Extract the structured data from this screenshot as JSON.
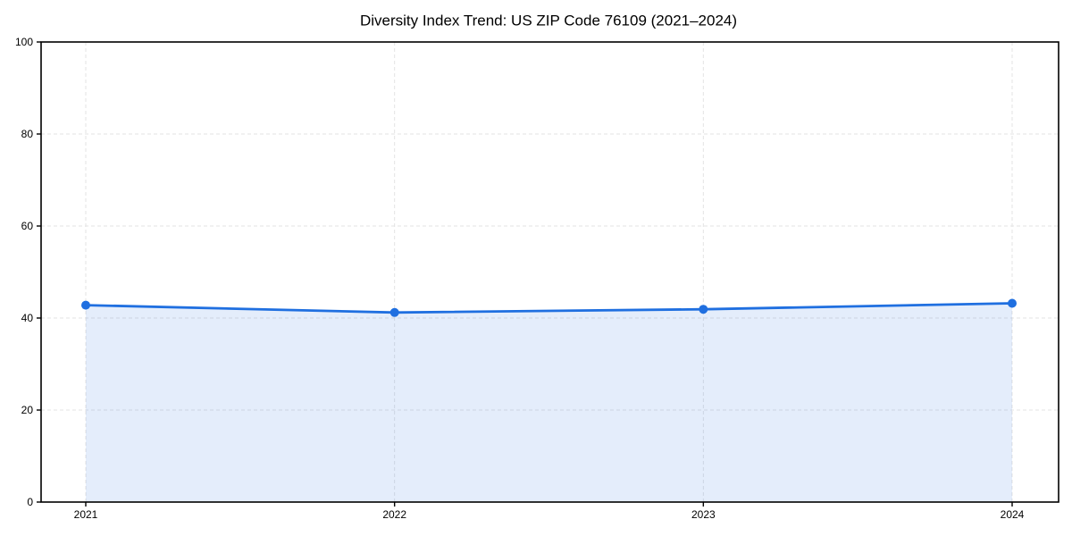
{
  "chart_data": {
    "type": "line",
    "title": "Diversity Index Trend: US ZIP Code 76109 (2021–2024)",
    "categories": [
      "2021",
      "2022",
      "2023",
      "2024"
    ],
    "values": [
      42.8,
      41.2,
      41.9,
      43.2
    ],
    "series_label": "",
    "xlabel": "",
    "ylabel": "",
    "ylim": [
      0,
      100
    ],
    "yticks": [
      0,
      20,
      40,
      60,
      80,
      100
    ],
    "legend": "none",
    "grid": "dashed",
    "area_fill": true,
    "marker_shape": "circle",
    "colors": {
      "line": "#1f6fe0",
      "marker": "#1f6fe0",
      "area": "#1f6fe0",
      "area_opacity": 0.12,
      "grid": "#e3e3e3",
      "axis": "#000000",
      "text": "#000000",
      "background": "#ffffff"
    }
  }
}
